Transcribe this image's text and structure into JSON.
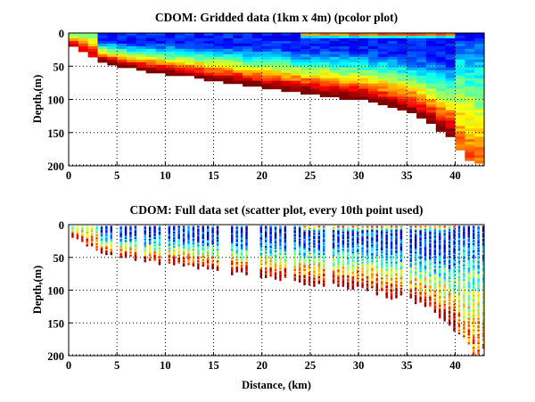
{
  "chart_data": [
    {
      "type": "heatmap",
      "title": "CDOM: Gridded data (1km x 4m) (pcolor plot)",
      "xlabel": "",
      "ylabel": "Depth,(m)",
      "xlim": [
        0,
        43
      ],
      "ylim": [
        200,
        0
      ],
      "y_reversed": true,
      "xticks": [
        "0",
        "5",
        "10",
        "15",
        "20",
        "25",
        "30",
        "35",
        "40"
      ],
      "yticks": [
        "0",
        "50",
        "100",
        "150",
        "200"
      ],
      "grid": true,
      "colormap": "jet",
      "cell_size": {
        "dx_km": 1,
        "dz_m": 4
      },
      "bottom_depth_profile": {
        "x_km": [
          0,
          1,
          2,
          3,
          4,
          5,
          6,
          7,
          8,
          9,
          10,
          12,
          14,
          16,
          18,
          20,
          22,
          24,
          26,
          28,
          30,
          31,
          32,
          33,
          34,
          35,
          36,
          37,
          38,
          39,
          40,
          41,
          42,
          43
        ],
        "depth_m": [
          16,
          24,
          32,
          40,
          45,
          48,
          50,
          54,
          56,
          58,
          60,
          62,
          68,
          72,
          76,
          80,
          84,
          88,
          92,
          96,
          98,
          100,
          106,
          110,
          114,
          118,
          122,
          130,
          140,
          150,
          160,
          185,
          195,
          195
        ]
      },
      "pattern_description": "Low CDOM (blue) near surface 5-40 m, high CDOM (red) near bottom; red surface band beyond ~25 km"
    },
    {
      "type": "scatter",
      "title": "CDOM: Full data set (scatter plot, every 10th point used)",
      "xlabel": "Distance, (km)",
      "ylabel": "Depth,(m)",
      "xlim": [
        0,
        43
      ],
      "ylim": [
        200,
        0
      ],
      "y_reversed": true,
      "xticks": [
        "0",
        "5",
        "10",
        "15",
        "20",
        "25",
        "30",
        "35",
        "40"
      ],
      "yticks": [
        "0",
        "50",
        "100",
        "150",
        "200"
      ],
      "grid": true,
      "colormap": "jet",
      "cast_spacing_km": 0.5,
      "pattern_description": "Vertical profile casts; same structure as gridded plot, deepest casts near 41-42 km reaching ~190 m"
    }
  ]
}
